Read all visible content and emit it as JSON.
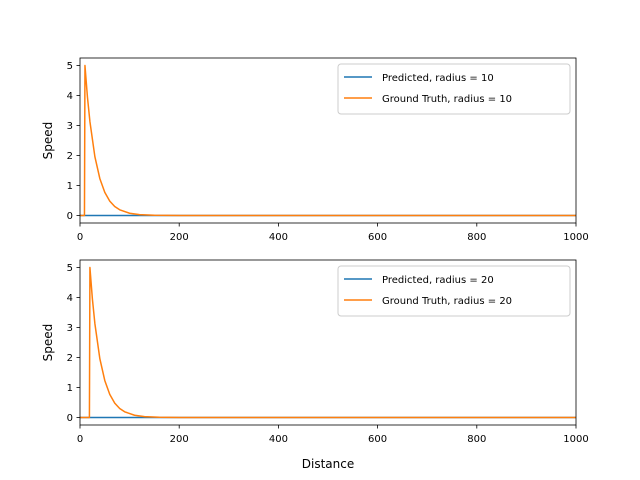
{
  "chart_data": [
    {
      "type": "line",
      "title": "",
      "xlabel": "",
      "ylabel": "Speed",
      "xlim": [
        0,
        1000
      ],
      "ylim": [
        -0.25,
        5.25
      ],
      "xticks": [
        0,
        200,
        400,
        600,
        800,
        1000
      ],
      "yticks": [
        0,
        1,
        2,
        3,
        4,
        5
      ],
      "grid": false,
      "legend_position": "top-right",
      "series": [
        {
          "name": "Predicted, radius = 10",
          "color": "#1f77b4",
          "x": [
            0,
            1000
          ],
          "y": [
            0,
            0
          ]
        },
        {
          "name": "Ground Truth, radius = 10",
          "color": "#ff7f0e",
          "x": [
            0,
            9,
            10,
            15,
            20,
            30,
            40,
            50,
            60,
            70,
            80,
            100,
            120,
            150,
            200,
            300,
            400,
            600,
            800,
            1000
          ],
          "y": [
            0,
            0,
            5.0,
            3.95,
            3.13,
            1.96,
            1.23,
            0.77,
            0.48,
            0.3,
            0.19,
            0.075,
            0.03,
            0.01,
            0,
            0,
            0,
            0,
            0,
            0
          ]
        }
      ]
    },
    {
      "type": "line",
      "title": "",
      "xlabel": "Distance",
      "ylabel": "Speed",
      "xlim": [
        0,
        1000
      ],
      "ylim": [
        -0.25,
        5.25
      ],
      "xticks": [
        0,
        200,
        400,
        600,
        800,
        1000
      ],
      "yticks": [
        0,
        1,
        2,
        3,
        4,
        5
      ],
      "grid": false,
      "legend_position": "top-right",
      "series": [
        {
          "name": "Predicted, radius = 20",
          "color": "#1f77b4",
          "x": [
            0,
            1000
          ],
          "y": [
            0,
            0
          ]
        },
        {
          "name": "Ground Truth, radius = 20",
          "color": "#ff7f0e",
          "x": [
            0,
            19,
            20,
            25,
            30,
            40,
            50,
            60,
            70,
            80,
            90,
            110,
            130,
            160,
            200,
            300,
            400,
            600,
            800,
            1000
          ],
          "y": [
            0,
            0,
            5.0,
            3.95,
            3.13,
            1.96,
            1.23,
            0.77,
            0.48,
            0.3,
            0.19,
            0.075,
            0.03,
            0.01,
            0,
            0,
            0,
            0,
            0,
            0
          ]
        }
      ]
    }
  ]
}
